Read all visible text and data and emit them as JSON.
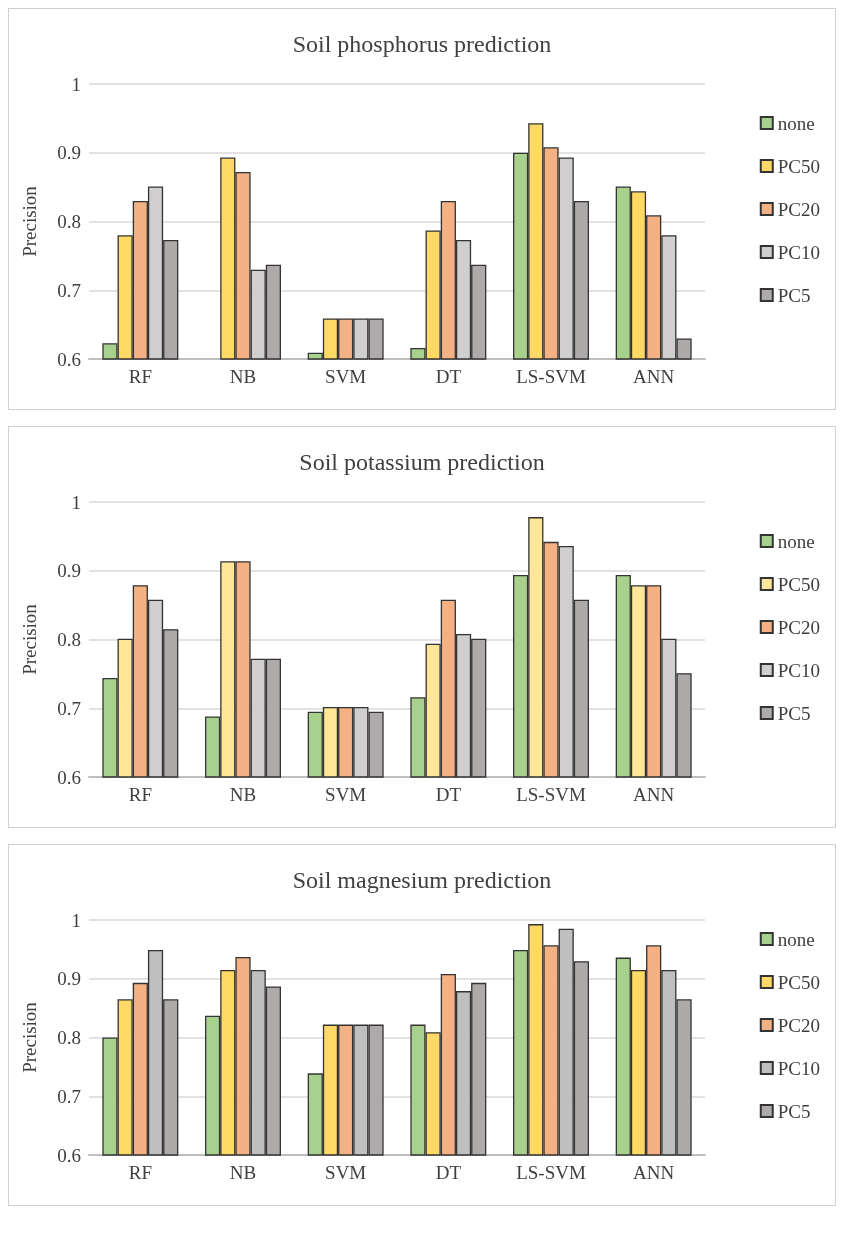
{
  "chart_data": [
    {
      "type": "bar",
      "title": "Soil phosphorus prediction",
      "ylabel": "Precision",
      "categories": [
        "RF",
        "NB",
        "SVM",
        "DT",
        "LS-SVM",
        "ANN"
      ],
      "ylim": [
        0.6,
        1
      ],
      "yticks": [
        0.6,
        0.7,
        0.8,
        0.9,
        1
      ],
      "grid": "y",
      "legend": "right",
      "series": [
        {
          "name": "none",
          "color": "#a9d18e",
          "values": [
            0.623,
            0.6,
            0.609,
            0.616,
            0.9,
            0.851
          ]
        },
        {
          "name": "PC50",
          "color": "#ffd966",
          "values": [
            0.78,
            0.893,
            0.659,
            0.787,
            0.943,
            0.844
          ]
        },
        {
          "name": "PC20",
          "color": "#f4b183",
          "values": [
            0.83,
            0.872,
            0.659,
            0.83,
            0.908,
            0.809
          ]
        },
        {
          "name": "PC10",
          "color": "#d0cece",
          "values": [
            0.851,
            0.73,
            0.659,
            0.773,
            0.893,
            0.78
          ]
        },
        {
          "name": "PC5",
          "color": "#aeaaaa",
          "values": [
            0.773,
            0.737,
            0.659,
            0.737,
            0.83,
            0.63
          ]
        }
      ]
    },
    {
      "type": "bar",
      "title": "Soil potassium prediction",
      "ylabel": "Precision",
      "categories": [
        "RF",
        "NB",
        "SVM",
        "DT",
        "LS-SVM",
        "ANN"
      ],
      "ylim": [
        0.6,
        1
      ],
      "yticks": [
        0.6,
        0.7,
        0.8,
        0.9,
        1
      ],
      "grid": "y",
      "legend": "right",
      "series": [
        {
          "name": "none",
          "color": "#a9d18e",
          "values": [
            0.744,
            0.688,
            0.695,
            0.716,
            0.894,
            0.894
          ]
        },
        {
          "name": "PC50",
          "color": "#ffe699",
          "values": [
            0.801,
            0.914,
            0.702,
            0.794,
            0.978,
            0.879
          ]
        },
        {
          "name": "PC20",
          "color": "#f4b183",
          "values": [
            0.879,
            0.914,
            0.702,
            0.858,
            0.942,
            0.879
          ]
        },
        {
          "name": "PC10",
          "color": "#d0cece",
          "values": [
            0.858,
            0.772,
            0.702,
            0.808,
            0.936,
            0.801
          ]
        },
        {
          "name": "PC5",
          "color": "#aeaaaa",
          "values": [
            0.815,
            0.772,
            0.695,
            0.801,
            0.858,
            0.751
          ]
        }
      ]
    },
    {
      "type": "bar",
      "title": "Soil magnesium prediction",
      "ylabel": "Precision",
      "categories": [
        "RF",
        "NB",
        "SVM",
        "DT",
        "LS-SVM",
        "ANN"
      ],
      "ylim": [
        0.6,
        1
      ],
      "yticks": [
        0.6,
        0.7,
        0.8,
        0.9,
        1
      ],
      "grid": "y",
      "legend": "right",
      "series": [
        {
          "name": "none",
          "color": "#a9d18e",
          "values": [
            0.8,
            0.837,
            0.739,
            0.822,
            0.949,
            0.936
          ]
        },
        {
          "name": "PC50",
          "color": "#ffd966",
          "values": [
            0.865,
            0.915,
            0.822,
            0.809,
            0.993,
            0.915
          ]
        },
        {
          "name": "PC20",
          "color": "#f4b183",
          "values": [
            0.893,
            0.937,
            0.822,
            0.908,
            0.957,
            0.957
          ]
        },
        {
          "name": "PC10",
          "color": "#bfbfbf",
          "values": [
            0.949,
            0.915,
            0.822,
            0.879,
            0.985,
            0.915
          ]
        },
        {
          "name": "PC5",
          "color": "#aeaaaa",
          "values": [
            0.865,
            0.887,
            0.822,
            0.893,
            0.93,
            0.865
          ]
        }
      ]
    }
  ]
}
